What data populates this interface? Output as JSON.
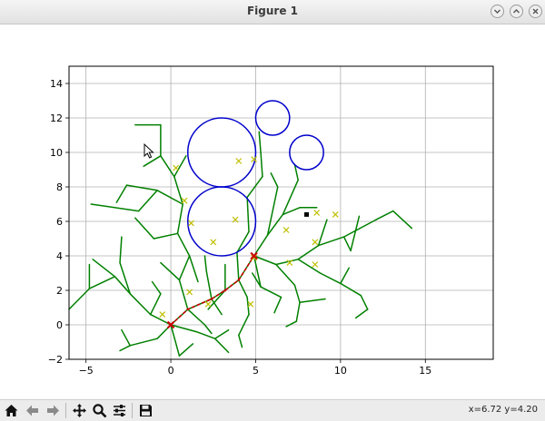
{
  "window": {
    "title": "Figure 1",
    "buttons": [
      {
        "name": "minimize",
        "icon": "chevron-down-icon"
      },
      {
        "name": "maximize",
        "icon": "chevron-up-icon"
      },
      {
        "name": "close",
        "icon": "close-icon"
      }
    ]
  },
  "toolbar": {
    "items": [
      {
        "name": "home",
        "icon": "home-icon"
      },
      {
        "name": "back",
        "icon": "arrow-left-icon"
      },
      {
        "name": "forward",
        "icon": "arrow-right-icon"
      },
      {
        "name": "pan",
        "icon": "move-icon"
      },
      {
        "name": "zoom",
        "icon": "magnifier-icon"
      },
      {
        "name": "configure-subplots",
        "icon": "sliders-icon"
      },
      {
        "name": "save",
        "icon": "floppy-icon"
      }
    ],
    "coords": "x=6.72 y=4.20"
  },
  "colors": {
    "tree": "#008000",
    "path": "#cc0000",
    "samples": "#bfbf00",
    "obstacles": "#0000cc"
  },
  "chart_data": {
    "type": "scatter",
    "title": "",
    "xlabel": "",
    "ylabel": "",
    "xlim": [
      -6,
      19
    ],
    "ylim": [
      -2,
      15
    ],
    "xticks": [
      "−5",
      "0",
      "5",
      "10",
      "15"
    ],
    "yticks": [
      "−2",
      "0",
      "2",
      "4",
      "6",
      "8",
      "10",
      "12",
      "14"
    ],
    "grid": true,
    "obstacles": [
      {
        "cx": 3,
        "cy": 6,
        "r": 2
      },
      {
        "cx": 3,
        "cy": 10,
        "r": 2
      },
      {
        "cx": 6,
        "cy": 12,
        "r": 1
      },
      {
        "cx": 8,
        "cy": 10,
        "r": 1
      }
    ],
    "samples": [
      [
        0.3,
        9.1
      ],
      [
        4.0,
        9.5
      ],
      [
        4.9,
        9.6
      ],
      [
        3.8,
        6.1
      ],
      [
        2.5,
        4.8
      ],
      [
        1.2,
        5.9
      ],
      [
        0.8,
        7.2
      ],
      [
        6.8,
        5.5
      ],
      [
        8.6,
        6.5
      ],
      [
        9.7,
        6.4
      ],
      [
        8.5,
        4.8
      ],
      [
        7.0,
        3.6
      ],
      [
        8.5,
        3.5
      ],
      [
        1.1,
        1.9
      ],
      [
        2.2,
        1.2
      ],
      [
        4.7,
        1.2
      ],
      [
        4.9,
        3.9
      ],
      [
        -0.5,
        0.6
      ]
    ],
    "tree_edges": [
      [
        [
          0,
          0
        ],
        [
          1.0,
          0.9
        ]
      ],
      [
        [
          1.0,
          0.9
        ],
        [
          2.4,
          1.5
        ]
      ],
      [
        [
          2.4,
          1.5
        ],
        [
          3.2,
          2.0
        ]
      ],
      [
        [
          3.2,
          2.0
        ],
        [
          4.0,
          2.6
        ]
      ],
      [
        [
          4.0,
          2.6
        ],
        [
          4.9,
          4.0
        ]
      ],
      [
        [
          0,
          0
        ],
        [
          -1.2,
          0.6
        ]
      ],
      [
        [
          -1.2,
          0.6
        ],
        [
          -2.4,
          1.8
        ]
      ],
      [
        [
          -2.4,
          1.8
        ],
        [
          -3.3,
          2.8
        ]
      ],
      [
        [
          -3.3,
          2.8
        ],
        [
          -4.6,
          3.8
        ]
      ],
      [
        [
          -2.4,
          1.8
        ],
        [
          -3.0,
          3.6
        ]
      ],
      [
        [
          -3.0,
          3.6
        ],
        [
          -2.9,
          5.1
        ]
      ],
      [
        [
          -3.3,
          2.8
        ],
        [
          -4.8,
          2.1
        ]
      ],
      [
        [
          -4.8,
          2.1
        ],
        [
          -6.0,
          0.9
        ]
      ],
      [
        [
          -4.8,
          2.1
        ],
        [
          -4.8,
          3.5
        ]
      ],
      [
        [
          -1.2,
          0.6
        ],
        [
          -0.6,
          1.8
        ]
      ],
      [
        [
          -0.6,
          1.8
        ],
        [
          -1.1,
          2.5
        ]
      ],
      [
        [
          0,
          0
        ],
        [
          -0.8,
          -0.8
        ]
      ],
      [
        [
          -0.8,
          -0.8
        ],
        [
          -2.4,
          -1.2
        ]
      ],
      [
        [
          -2.4,
          -1.2
        ],
        [
          -2.9,
          -0.3
        ]
      ],
      [
        [
          -2.4,
          -1.2
        ],
        [
          -3.0,
          -1.5
        ]
      ],
      [
        [
          0,
          0
        ],
        [
          0.5,
          -1.8
        ]
      ],
      [
        [
          0.5,
          -1.8
        ],
        [
          1.3,
          -1.1
        ]
      ],
      [
        [
          0,
          0
        ],
        [
          1.5,
          -0.4
        ]
      ],
      [
        [
          1.5,
          -0.4
        ],
        [
          2.6,
          -0.8
        ]
      ],
      [
        [
          2.6,
          -0.8
        ],
        [
          3.4,
          -1.6
        ]
      ],
      [
        [
          2.6,
          -0.8
        ],
        [
          3.4,
          -0.3
        ]
      ],
      [
        [
          1.0,
          0.9
        ],
        [
          0.5,
          2.6
        ]
      ],
      [
        [
          0.5,
          2.6
        ],
        [
          -0.6,
          3.6
        ]
      ],
      [
        [
          0.5,
          2.6
        ],
        [
          1.1,
          4.0
        ]
      ],
      [
        [
          1.1,
          4.0
        ],
        [
          0.4,
          5.3
        ]
      ],
      [
        [
          0.4,
          5.3
        ],
        [
          0.7,
          7.0
        ]
      ],
      [
        [
          0.7,
          7.0
        ],
        [
          0.2,
          8.6
        ]
      ],
      [
        [
          0.2,
          8.6
        ],
        [
          -0.6,
          9.8
        ]
      ],
      [
        [
          -0.6,
          9.8
        ],
        [
          -0.6,
          11.6
        ]
      ],
      [
        [
          -0.6,
          11.6
        ],
        [
          -2.1,
          11.6
        ]
      ],
      [
        [
          -0.6,
          9.8
        ],
        [
          -1.6,
          9.2
        ]
      ],
      [
        [
          0.2,
          8.6
        ],
        [
          0.9,
          9.8
        ]
      ],
      [
        [
          0.7,
          7.0
        ],
        [
          -0.8,
          7.8
        ]
      ],
      [
        [
          -0.8,
          7.8
        ],
        [
          -2.6,
          8.1
        ]
      ],
      [
        [
          -2.6,
          8.1
        ],
        [
          -3.2,
          7.1
        ]
      ],
      [
        [
          -0.8,
          7.8
        ],
        [
          -1.9,
          6.6
        ]
      ],
      [
        [
          -1.9,
          6.6
        ],
        [
          -4.7,
          7.0
        ]
      ],
      [
        [
          0.4,
          5.3
        ],
        [
          -1.0,
          5.0
        ]
      ],
      [
        [
          -1.0,
          5.0
        ],
        [
          -2.1,
          6.2
        ]
      ],
      [
        [
          1.1,
          4.0
        ],
        [
          1.6,
          2.5
        ]
      ],
      [
        [
          2.4,
          1.5
        ],
        [
          2.1,
          3.1
        ]
      ],
      [
        [
          2.1,
          3.1
        ],
        [
          2.0,
          4.0
        ]
      ],
      [
        [
          3.2,
          2.0
        ],
        [
          3.2,
          3.5
        ]
      ],
      [
        [
          3.2,
          2.0
        ],
        [
          2.2,
          0.9
        ]
      ],
      [
        [
          4.0,
          2.6
        ],
        [
          4.5,
          1.6
        ]
      ],
      [
        [
          4.5,
          1.6
        ],
        [
          4.6,
          0.6
        ]
      ],
      [
        [
          4.6,
          0.6
        ],
        [
          4.0,
          -0.6
        ]
      ],
      [
        [
          4.0,
          -0.6
        ],
        [
          4.2,
          -1.3
        ]
      ],
      [
        [
          4.0,
          2.6
        ],
        [
          3.9,
          4.2
        ]
      ],
      [
        [
          3.9,
          4.2
        ],
        [
          4.6,
          5.4
        ]
      ],
      [
        [
          4.6,
          5.4
        ],
        [
          4.5,
          7.4
        ]
      ],
      [
        [
          4.5,
          7.4
        ],
        [
          5.4,
          8.6
        ]
      ],
      [
        [
          5.4,
          8.6
        ],
        [
          5.3,
          10.0
        ]
      ],
      [
        [
          5.3,
          10.0
        ],
        [
          5.2,
          11.2
        ]
      ],
      [
        [
          4.9,
          4.0
        ],
        [
          5.7,
          5.2
        ]
      ],
      [
        [
          5.7,
          5.2
        ],
        [
          6.6,
          6.4
        ]
      ],
      [
        [
          6.6,
          6.4
        ],
        [
          7.6,
          6.8
        ]
      ],
      [
        [
          7.6,
          6.8
        ],
        [
          8.6,
          6.8
        ]
      ],
      [
        [
          6.6,
          6.4
        ],
        [
          7.5,
          8.4
        ]
      ],
      [
        [
          7.5,
          8.4
        ],
        [
          7.3,
          9.3
        ]
      ],
      [
        [
          5.7,
          5.2
        ],
        [
          6.3,
          8.0
        ]
      ],
      [
        [
          6.3,
          8.0
        ],
        [
          5.9,
          8.8
        ]
      ],
      [
        [
          4.9,
          4.0
        ],
        [
          6.2,
          3.5
        ]
      ],
      [
        [
          6.2,
          3.5
        ],
        [
          7.5,
          3.8
        ]
      ],
      [
        [
          7.5,
          3.8
        ],
        [
          8.7,
          4.6
        ]
      ],
      [
        [
          8.7,
          4.6
        ],
        [
          10.2,
          5.1
        ]
      ],
      [
        [
          10.2,
          5.1
        ],
        [
          12.1,
          6.1
        ]
      ],
      [
        [
          12.1,
          6.1
        ],
        [
          13.1,
          6.6
        ]
      ],
      [
        [
          13.1,
          6.6
        ],
        [
          14.2,
          5.6
        ]
      ],
      [
        [
          10.2,
          5.1
        ],
        [
          10.6,
          4.3
        ]
      ],
      [
        [
          10.6,
          4.3
        ],
        [
          11.1,
          6.3
        ]
      ],
      [
        [
          8.7,
          4.6
        ],
        [
          9.2,
          6.1
        ]
      ],
      [
        [
          7.5,
          3.8
        ],
        [
          8.8,
          3.0
        ]
      ],
      [
        [
          8.8,
          3.0
        ],
        [
          10.0,
          2.4
        ]
      ],
      [
        [
          10.0,
          2.4
        ],
        [
          11.2,
          1.7
        ]
      ],
      [
        [
          11.2,
          1.7
        ],
        [
          11.6,
          0.9
        ]
      ],
      [
        [
          11.6,
          0.9
        ],
        [
          10.9,
          0.4
        ]
      ],
      [
        [
          10.0,
          2.4
        ],
        [
          10.5,
          3.3
        ]
      ],
      [
        [
          6.2,
          3.5
        ],
        [
          7.3,
          2.3
        ]
      ],
      [
        [
          7.3,
          2.3
        ],
        [
          7.6,
          1.3
        ]
      ],
      [
        [
          7.6,
          1.3
        ],
        [
          7.4,
          0.2
        ]
      ],
      [
        [
          7.4,
          0.2
        ],
        [
          6.8,
          -0.1
        ]
      ],
      [
        [
          7.6,
          1.3
        ],
        [
          9.1,
          1.5
        ]
      ],
      [
        [
          4.9,
          4.0
        ],
        [
          5.3,
          2.2
        ]
      ],
      [
        [
          5.3,
          2.2
        ],
        [
          6.5,
          1.6
        ]
      ],
      [
        [
          6.5,
          1.6
        ],
        [
          6.1,
          0.7
        ]
      ],
      [
        [
          5.3,
          2.2
        ],
        [
          4.8,
          3.0
        ]
      ],
      [
        [
          1.0,
          0.9
        ],
        [
          2.0,
          0.0
        ]
      ],
      [
        [
          2.0,
          0.0
        ],
        [
          2.4,
          -0.5
        ]
      ],
      [
        [
          2.4,
          1.5
        ],
        [
          3.0,
          0.6
        ]
      ]
    ],
    "path": [
      [
        0,
        0
      ],
      [
        1.0,
        0.9
      ],
      [
        2.4,
        1.5
      ],
      [
        3.2,
        2.0
      ],
      [
        4.0,
        2.6
      ],
      [
        4.9,
        4.0
      ]
    ],
    "start": [
      0,
      0
    ],
    "goal": [
      4.9,
      4.0
    ],
    "marker": [
      8.0,
      6.4
    ]
  }
}
